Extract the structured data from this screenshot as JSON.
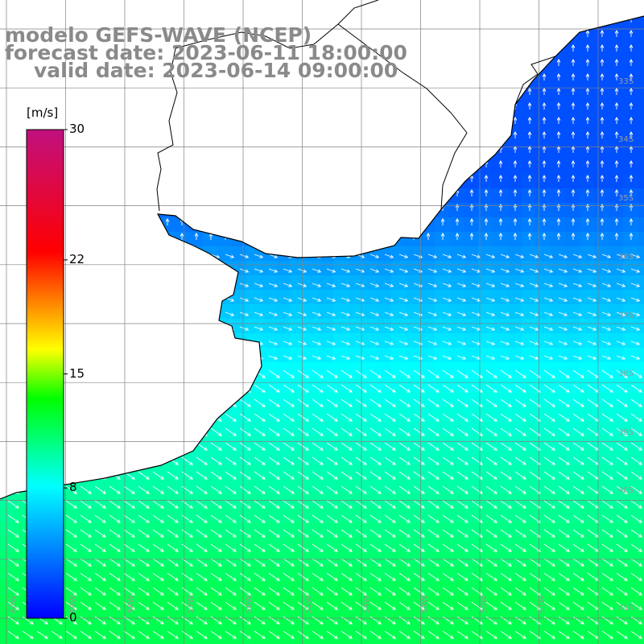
{
  "title": {
    "line1": "modelo GEFS-WAVE (NCEP)",
    "line2": "forecast date: 2023-06-11 18:00:00",
    "line3": "valid date: 2023-06-14 09:00:00"
  },
  "colorbar": {
    "units": "[m/s]",
    "ticks": [
      {
        "label": "30",
        "value": 30
      },
      {
        "label": "22",
        "value": 22
      },
      {
        "label": "15",
        "value": 15
      },
      {
        "label": "8",
        "value": 8
      },
      {
        "label": "0",
        "value": 0
      }
    ],
    "range": [
      0,
      30
    ],
    "colors": [
      "#0000ff",
      "#00ffff",
      "#00ff00",
      "#ffff00",
      "#ff0000",
      "#c0107f"
    ]
  },
  "map": {
    "lat_labels": [
      "33S",
      "34S",
      "35S",
      "36S",
      "37S",
      "38S",
      "39S",
      "40S",
      "41S"
    ],
    "lon_labels": [
      "60W",
      "59W",
      "58W",
      "57W",
      "56W",
      "55W",
      "54W",
      "53W",
      "52W",
      "51W"
    ],
    "land_color": "#ffffff",
    "grid_color": "#808080",
    "coast_color": "#000000",
    "arrow_color": "#ffffff"
  }
}
